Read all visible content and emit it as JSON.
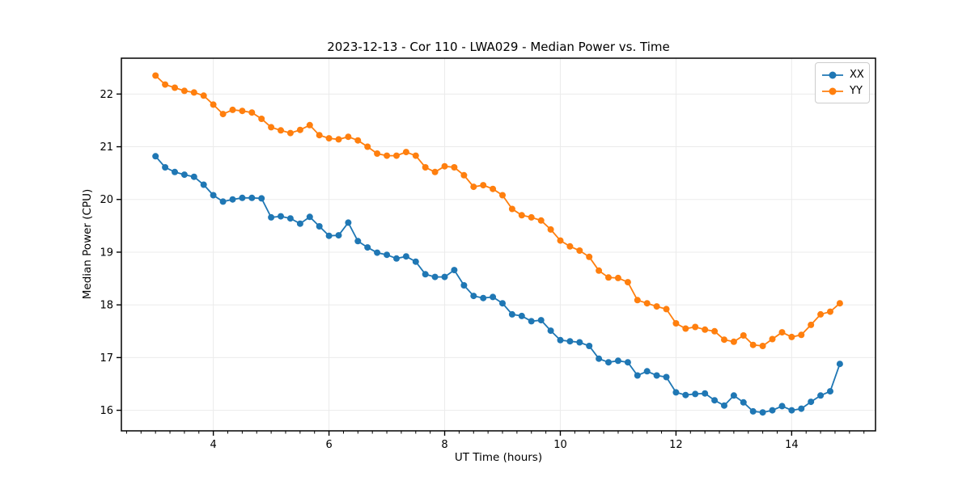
{
  "chart_data": {
    "type": "line",
    "title": "2023-12-13 - Cor 110 - LWA029 - Median Power vs. Time",
    "xlabel": "UT Time (hours)",
    "ylabel": "Median Power (CPU)",
    "xlim": [
      2.41,
      15.45
    ],
    "ylim": [
      15.61,
      22.68
    ],
    "xticks": [
      4,
      6,
      8,
      10,
      12,
      14
    ],
    "yticks": [
      16,
      17,
      18,
      19,
      20,
      21,
      22
    ],
    "minor_xtick_step": 0.25,
    "grid": true,
    "grid_color": "#ebebeb",
    "legend_position": "upper right",
    "x_start": 3.0,
    "x_step": 0.166667,
    "series": [
      {
        "name": "XX",
        "color": "#1f77b4",
        "values": [
          20.82,
          20.61,
          20.52,
          20.47,
          20.43,
          20.28,
          20.08,
          19.96,
          20.0,
          20.03,
          20.03,
          20.02,
          19.66,
          19.68,
          19.64,
          19.54,
          19.67,
          19.49,
          19.31,
          19.32,
          19.56,
          19.21,
          19.09,
          18.99,
          18.95,
          18.88,
          18.92,
          18.82,
          18.58,
          18.53,
          18.53,
          18.66,
          18.37,
          18.17,
          18.13,
          18.15,
          18.03,
          17.82,
          17.79,
          17.69,
          17.71,
          17.51,
          17.33,
          17.31,
          17.29,
          17.22,
          16.98,
          16.91,
          16.94,
          16.91,
          16.66,
          16.74,
          16.66,
          16.63,
          16.34,
          16.29,
          16.31,
          16.32,
          16.19,
          16.09,
          16.28,
          16.15,
          15.98,
          15.96,
          16.0,
          16.08,
          16.0,
          16.03,
          16.16,
          16.28,
          16.36,
          16.88
        ]
      },
      {
        "name": "YY",
        "color": "#ff7f0e",
        "values": [
          22.35,
          22.18,
          22.12,
          22.06,
          22.03,
          21.97,
          21.8,
          21.62,
          21.7,
          21.68,
          21.65,
          21.53,
          21.37,
          21.31,
          21.26,
          21.32,
          21.41,
          21.22,
          21.16,
          21.14,
          21.19,
          21.12,
          21.0,
          20.87,
          20.83,
          20.83,
          20.9,
          20.83,
          20.61,
          20.52,
          20.63,
          20.61,
          20.46,
          20.24,
          20.27,
          20.2,
          20.08,
          19.82,
          19.7,
          19.66,
          19.6,
          19.43,
          19.22,
          19.11,
          19.03,
          18.91,
          18.65,
          18.52,
          18.51,
          18.43,
          18.09,
          18.03,
          17.97,
          17.92,
          17.65,
          17.55,
          17.58,
          17.53,
          17.5,
          17.34,
          17.3,
          17.42,
          17.24,
          17.22,
          17.35,
          17.48,
          17.39,
          17.43,
          17.62,
          17.82,
          17.87,
          18.03
        ]
      }
    ]
  }
}
